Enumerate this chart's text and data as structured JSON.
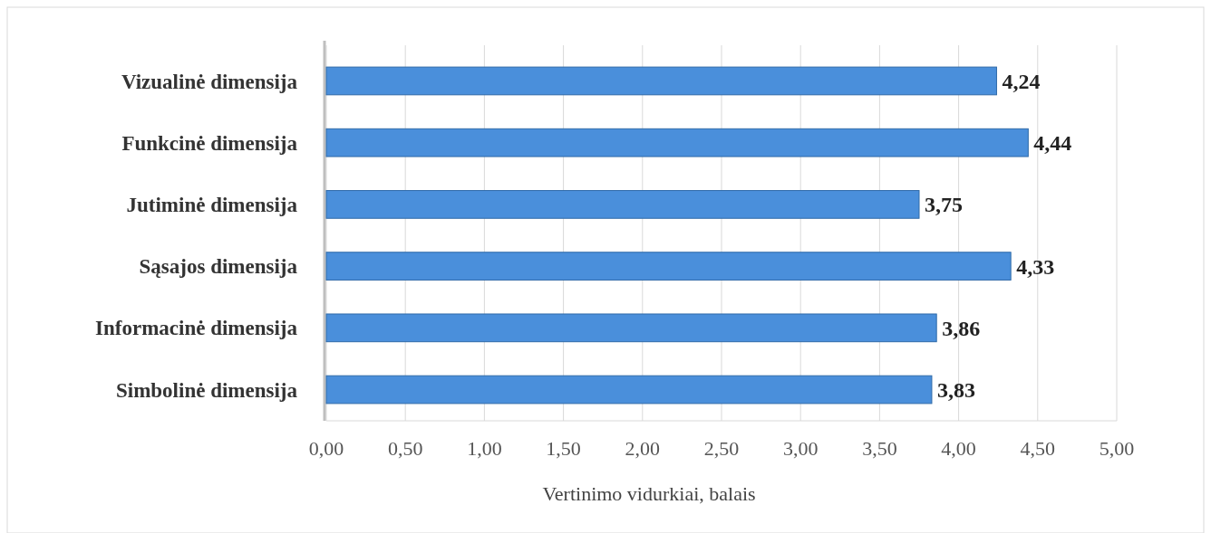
{
  "chart_data": {
    "type": "bar",
    "orientation": "horizontal",
    "xlabel": "Vertinimo vidurkiai, balais",
    "categories": [
      "Vizualinė dimensija",
      "Funkcinė dimensija",
      "Jutiminė dimensija",
      "Sąsajos dimensija",
      "Informacinė dimensija",
      "Simbolinė dimensija"
    ],
    "values": [
      4.24,
      4.44,
      3.75,
      4.33,
      3.86,
      3.83
    ],
    "value_labels": [
      "4,24",
      "4,44",
      "3,75",
      "4,33",
      "3,86",
      "3,83"
    ],
    "color": "#4a8fdb",
    "xlim": [
      0,
      5
    ],
    "xticks": [
      {
        "value": 0,
        "label": "0,00"
      },
      {
        "value": 0.5,
        "label": "0,50"
      },
      {
        "value": 1,
        "label": "1,00"
      },
      {
        "value": 1.5,
        "label": "1,50"
      },
      {
        "value": 2,
        "label": "2,00"
      },
      {
        "value": 2.5,
        "label": "2,50"
      },
      {
        "value": 3,
        "label": "3,00"
      },
      {
        "value": 3.5,
        "label": "3,50"
      },
      {
        "value": 4,
        "label": "4,00"
      },
      {
        "value": 4.5,
        "label": "4,50"
      },
      {
        "value": 5,
        "label": "5,00"
      }
    ],
    "grid": "x"
  }
}
